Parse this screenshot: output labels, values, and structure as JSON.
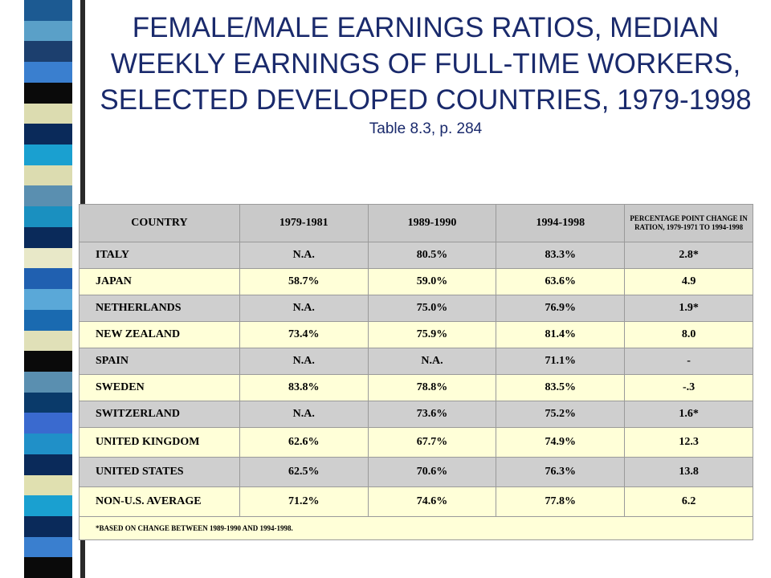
{
  "title": {
    "main": "FEMALE/MALE EARNINGS RATIOS, MEDIAN WEEKLY EARNINGS OF FULL-TIME WORKERS, SELECTED DEVELOPED COUNTRIES, 1979-1998",
    "subtitle": "Table 8.3, p. 284"
  },
  "stripe_colors": [
    "#1c5a92",
    "#5aa0c8",
    "#1c3f6e",
    "#3a7fcf",
    "#0a0a0a",
    "#dcdcb0",
    "#0a2a5a",
    "#1aa0d0",
    "#dcdcb0",
    "#5a8fb0",
    "#1a90c0",
    "#0a2a5a",
    "#e8e8c8",
    "#2060b0",
    "#5aa8d8",
    "#1a6ab0",
    "#e0e0b8",
    "#0a0a0a",
    "#5a8fb0",
    "#0a3a6a",
    "#3a6acf",
    "#2090c8",
    "#0a2a5a",
    "#e0e0b0",
    "#1aa0d0",
    "#0a2a5a",
    "#3a7fcf",
    "#0a0a0a"
  ],
  "table": {
    "headers": [
      "COUNTRY",
      "1979-1981",
      "1989-1990",
      "1994-1998",
      "PERCENTAGE POINT CHANGE IN RATION, 1979-1971 TO 1994-1998"
    ],
    "rows": [
      [
        "ITALY",
        "N.A.",
        "80.5%",
        "83.3%",
        "2.8*"
      ],
      [
        "JAPAN",
        "58.7%",
        "59.0%",
        "63.6%",
        "4.9"
      ],
      [
        "NETHERLANDS",
        "N.A.",
        "75.0%",
        "76.9%",
        "1.9*"
      ],
      [
        "NEW ZEALAND",
        "73.4%",
        "75.9%",
        "81.4%",
        "8.0"
      ],
      [
        "SPAIN",
        "N.A.",
        "N.A.",
        "71.1%",
        "-"
      ],
      [
        "SWEDEN",
        "83.8%",
        "78.8%",
        "83.5%",
        "-.3"
      ],
      [
        "SWITZERLAND",
        "N.A.",
        "73.6%",
        "75.2%",
        "1.6*"
      ],
      [
        "UNITED KINGDOM",
        "62.6%",
        "67.7%",
        "74.9%",
        "12.3"
      ],
      [
        "UNITED STATES",
        "62.5%",
        "70.6%",
        "76.3%",
        "13.8"
      ],
      [
        "NON-U.S. AVERAGE",
        "71.2%",
        "74.6%",
        "77.8%",
        "6.2"
      ]
    ],
    "footnote": "*BASED ON CHANGE BETWEEN 1989-1990 AND 1994-1998."
  }
}
